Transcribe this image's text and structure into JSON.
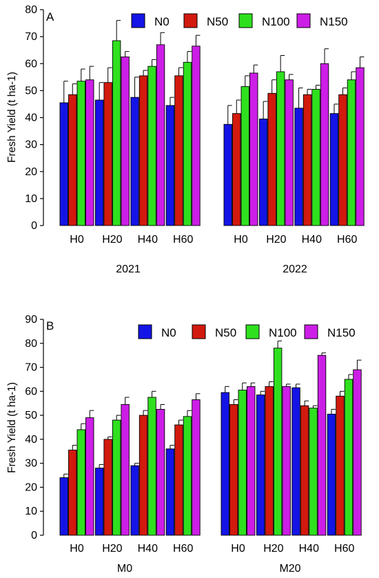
{
  "legend_entries": [
    "N0",
    "N50",
    "N100",
    "N150"
  ],
  "colors": {
    "N0": "#1414e6",
    "N50": "#d21a0e",
    "N100": "#2fe01f",
    "N150": "#cc1ee6"
  },
  "chart_data": [
    {
      "type": "bar",
      "panel_label": "A",
      "ylabel": "Fresh Yield (t ha-1)",
      "ylim": [
        0,
        80
      ],
      "yticks": [
        0,
        10,
        20,
        30,
        40,
        50,
        60,
        70,
        80
      ],
      "legend_placement": "top-right",
      "groups": [
        {
          "label": "2021",
          "categories": [
            "H0",
            "H20",
            "H40",
            "H60"
          ],
          "series": [
            {
              "name": "N0",
              "values": [
                45.5,
                46.5,
                47.5,
                44.5
              ],
              "errors": [
                8,
                6.5,
                7.5,
                3
              ]
            },
            {
              "name": "N50",
              "values": [
                48.5,
                53,
                55.5,
                55.5
              ],
              "errors": [
                4,
                5.5,
                2,
                3
              ]
            },
            {
              "name": "N100",
              "values": [
                53.5,
                68.5,
                59,
                60.5
              ],
              "errors": [
                4.5,
                7.5,
                2.5,
                4
              ]
            },
            {
              "name": "N150",
              "values": [
                54,
                62.5,
                67,
                66.5
              ],
              "errors": [
                5,
                2,
                4.5,
                4
              ]
            }
          ]
        },
        {
          "label": "2022",
          "categories": [
            "H0",
            "H20",
            "H40",
            "H60"
          ],
          "series": [
            {
              "name": "N0",
              "values": [
                37.5,
                39.5,
                43.5,
                41.5
              ],
              "errors": [
                7,
                6.5,
                7.5,
                3.5
              ]
            },
            {
              "name": "N50",
              "values": [
                41.5,
                49,
                48.5,
                48.5
              ],
              "errors": [
                5,
                5,
                2,
                2.5
              ]
            },
            {
              "name": "N100",
              "values": [
                51.5,
                57,
                50.5,
                54
              ],
              "errors": [
                4,
                6,
                1.5,
                3
              ]
            },
            {
              "name": "N150",
              "values": [
                56.5,
                54,
                60,
                58.5
              ],
              "errors": [
                3,
                2,
                5.5,
                4
              ]
            }
          ]
        }
      ]
    },
    {
      "type": "bar",
      "panel_label": "B",
      "ylabel": "Fresh Yield (t ha-1)",
      "ylim": [
        0,
        90
      ],
      "yticks": [
        0,
        10,
        20,
        30,
        40,
        50,
        60,
        70,
        80,
        90
      ],
      "legend_placement": "top-right",
      "groups": [
        {
          "label": "M0",
          "categories": [
            "H0",
            "H20",
            "H40",
            "H60"
          ],
          "series": [
            {
              "name": "N0",
              "values": [
                24,
                28,
                29,
                36
              ],
              "errors": [
                1.5,
                1.5,
                1,
                1.5
              ]
            },
            {
              "name": "N50",
              "values": [
                35.5,
                40,
                50,
                46
              ],
              "errors": [
                2,
                1,
                2,
                2
              ]
            },
            {
              "name": "N100",
              "values": [
                44,
                48,
                57.5,
                49.5
              ],
              "errors": [
                2.5,
                2,
                2.5,
                2.5
              ]
            },
            {
              "name": "N150",
              "values": [
                49,
                54.5,
                52.5,
                56.5
              ],
              "errors": [
                3,
                3,
                2,
                2.5
              ]
            }
          ]
        },
        {
          "label": "M20",
          "categories": [
            "H0",
            "H20",
            "H40",
            "H60"
          ],
          "series": [
            {
              "name": "N0",
              "values": [
                59.5,
                58.5,
                61.5,
                50.5
              ],
              "errors": [
                2.5,
                1.5,
                1.5,
                2
              ]
            },
            {
              "name": "N50",
              "values": [
                54.5,
                62,
                54,
                58
              ],
              "errors": [
                2,
                2,
                2,
                2
              ]
            },
            {
              "name": "N100",
              "values": [
                60.5,
                78,
                53,
                65
              ],
              "errors": [
                3,
                3,
                1,
                2
              ]
            },
            {
              "name": "N150",
              "values": [
                62,
                62,
                75,
                69
              ],
              "errors": [
                1.5,
                1,
                1,
                4
              ]
            }
          ]
        }
      ]
    }
  ]
}
